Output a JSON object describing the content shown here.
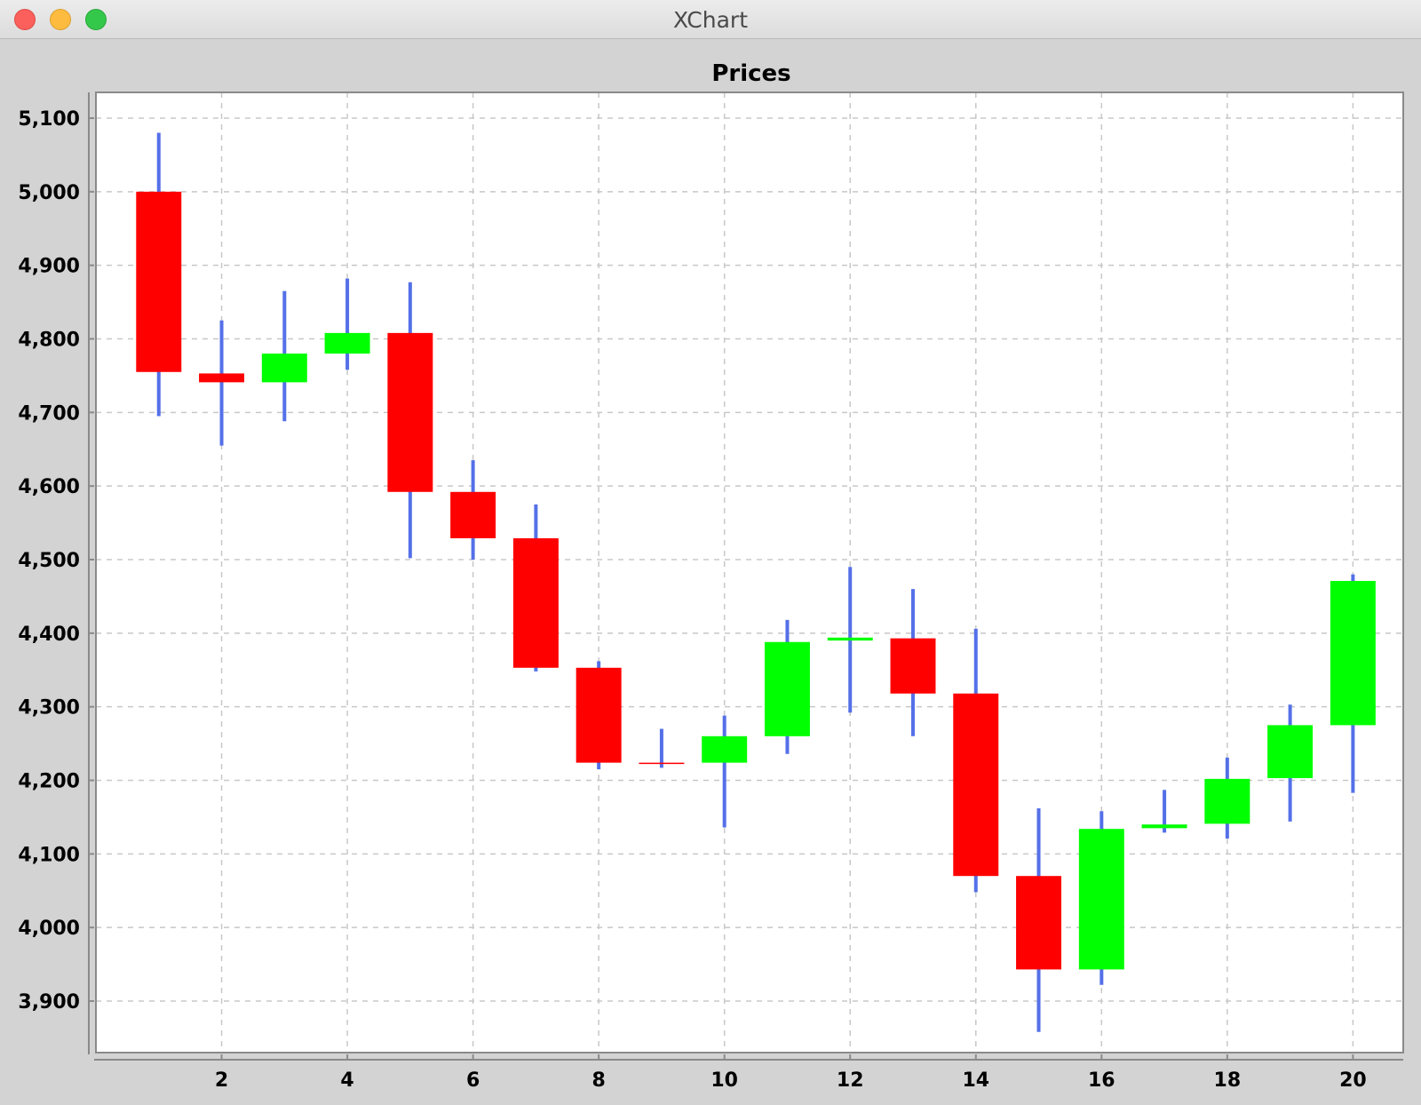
{
  "window": {
    "title": "XChart"
  },
  "chart_data": {
    "type": "candlestick",
    "title": "Prices",
    "xlabel": "",
    "ylabel": "",
    "xlim": [
      0.0,
      20.8
    ],
    "ylim": [
      3830,
      5135
    ],
    "x_ticks": [
      2,
      4,
      6,
      8,
      10,
      12,
      14,
      16,
      18,
      20
    ],
    "x_tick_labels": [
      "2",
      "4",
      "6",
      "8",
      "10",
      "12",
      "14",
      "16",
      "18",
      "20"
    ],
    "y_ticks": [
      3900,
      4000,
      4100,
      4200,
      4300,
      4400,
      4500,
      4600,
      4700,
      4800,
      4900,
      5000,
      5100
    ],
    "y_tick_labels": [
      "3,900",
      "4,000",
      "4,100",
      "4,200",
      "4,300",
      "4,400",
      "4,500",
      "4,600",
      "4,700",
      "4,800",
      "4,900",
      "5,000",
      "5,100"
    ],
    "grid": true,
    "colors": {
      "up": "#00ff00",
      "down": "#ff0000",
      "wick": "#5470e8",
      "grid": "#c8c8c8"
    },
    "candles": [
      {
        "x": 1,
        "open": 5000,
        "high": 5080,
        "low": 4695,
        "close": 4755
      },
      {
        "x": 2,
        "open": 4753,
        "high": 4825,
        "low": 4655,
        "close": 4741
      },
      {
        "x": 3,
        "open": 4741,
        "high": 4865,
        "low": 4688,
        "close": 4780
      },
      {
        "x": 4,
        "open": 4780,
        "high": 4882,
        "low": 4758,
        "close": 4808
      },
      {
        "x": 5,
        "open": 4808,
        "high": 4877,
        "low": 4502,
        "close": 4592
      },
      {
        "x": 6,
        "open": 4592,
        "high": 4635,
        "low": 4500,
        "close": 4529
      },
      {
        "x": 7,
        "open": 4529,
        "high": 4575,
        "low": 4348,
        "close": 4353
      },
      {
        "x": 8,
        "open": 4353,
        "high": 4362,
        "low": 4215,
        "close": 4224
      },
      {
        "x": 9,
        "open": 4224,
        "high": 4270,
        "low": 4217,
        "close": 4223
      },
      {
        "x": 10,
        "open": 4224,
        "high": 4288,
        "low": 4136,
        "close": 4260
      },
      {
        "x": 11,
        "open": 4260,
        "high": 4418,
        "low": 4236,
        "close": 4388
      },
      {
        "x": 12,
        "open": 4390,
        "high": 4490,
        "low": 4292,
        "close": 4394
      },
      {
        "x": 13,
        "open": 4393,
        "high": 4460,
        "low": 4260,
        "close": 4318
      },
      {
        "x": 14,
        "open": 4318,
        "high": 4406,
        "low": 4048,
        "close": 4070
      },
      {
        "x": 15,
        "open": 4070,
        "high": 4162,
        "low": 3858,
        "close": 3943
      },
      {
        "x": 16,
        "open": 3943,
        "high": 4158,
        "low": 3922,
        "close": 4134
      },
      {
        "x": 17,
        "open": 4135,
        "high": 4187,
        "low": 4129,
        "close": 4140
      },
      {
        "x": 18,
        "open": 4141,
        "high": 4231,
        "low": 4121,
        "close": 4202
      },
      {
        "x": 19,
        "open": 4203,
        "high": 4303,
        "low": 4144,
        "close": 4275
      },
      {
        "x": 20,
        "open": 4275,
        "high": 4480,
        "low": 4183,
        "close": 4471
      }
    ]
  }
}
